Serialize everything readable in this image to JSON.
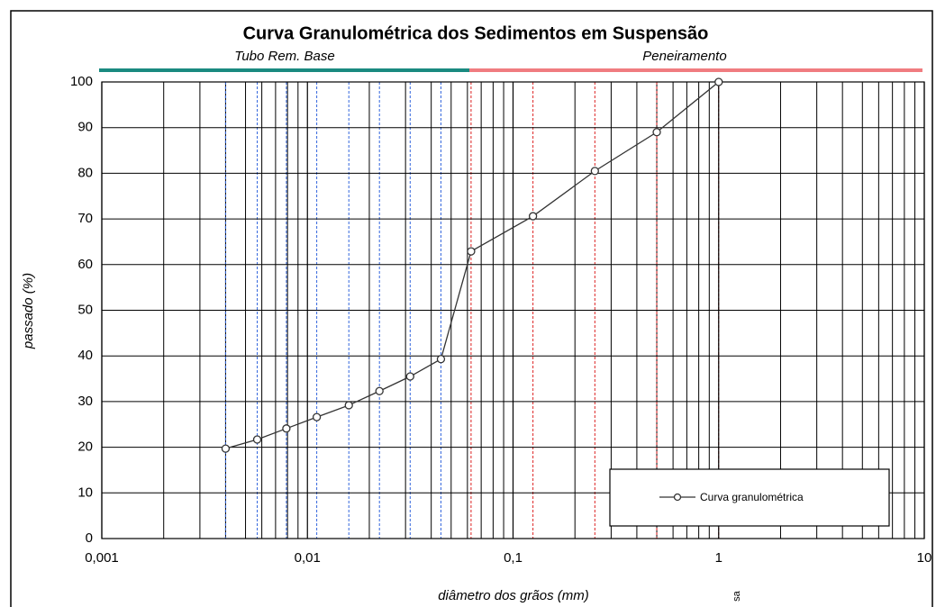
{
  "chart_data": {
    "type": "line",
    "title": "Curva Granulométrica dos Sedimentos em Suspensão",
    "xlabel": "diâmetro dos grãos  (mm)",
    "ylabel": "passado  (%)",
    "annotations": [
      "Tubo Rem. Base",
      "Peneiramento",
      "sa"
    ],
    "xscale": "log",
    "grid": true,
    "legend": "lower right",
    "x": [
      0.004,
      0.0057,
      0.0079,
      0.0111,
      0.0159,
      0.0224,
      0.0316,
      0.0446,
      0.0625,
      0.125,
      0.25,
      0.5,
      1
    ],
    "series": [
      {
        "name": "Curva granulométrica",
        "color": "#333333",
        "values": [
          19.7,
          21.7,
          24.1,
          26.6,
          29.2,
          32.3,
          35.5,
          39.3,
          62.9,
          70.6,
          80.5,
          89,
          100
        ]
      }
    ],
    "xlim": [
      0.001,
      10
    ],
    "xticks": [
      {
        "value": 0.001,
        "label": "0,001"
      },
      {
        "value": 0.01,
        "label": "0,01"
      },
      {
        "value": 0.1,
        "label": "0,1"
      },
      1,
      10
    ],
    "ylim": [
      0,
      100
    ],
    "yticks": [
      0,
      10,
      20,
      30,
      40,
      50,
      60,
      70,
      80,
      90,
      100
    ]
  }
}
